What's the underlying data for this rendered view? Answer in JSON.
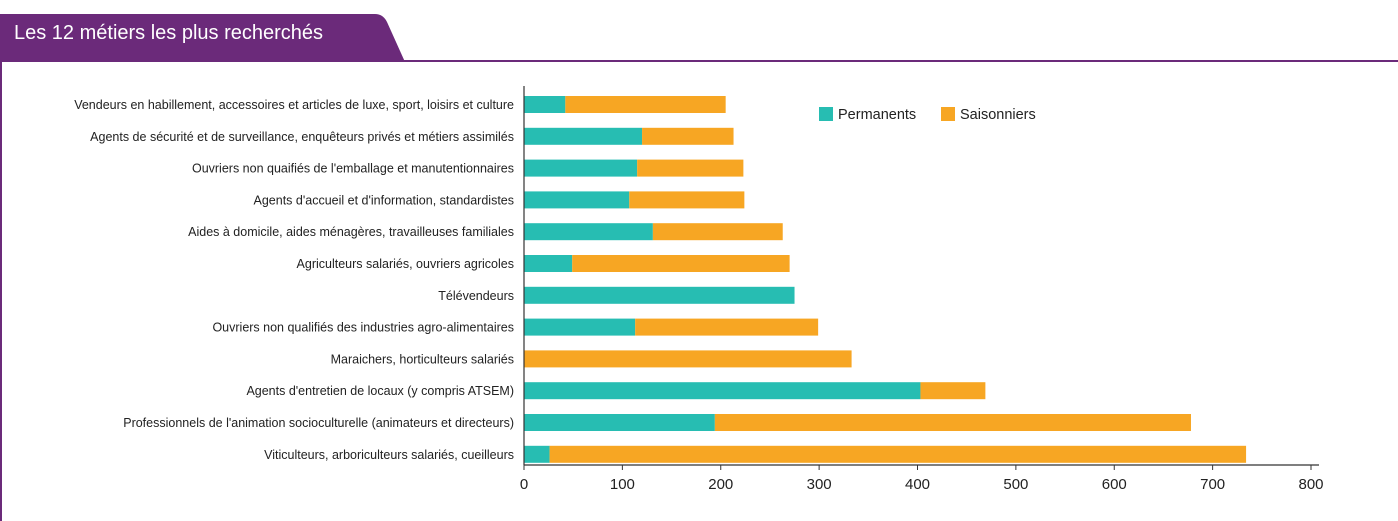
{
  "colors": {
    "frame": "#6b2a7a",
    "permanents": "#27bdb2",
    "saisonniers": "#f7a623",
    "axis": "#333333"
  },
  "chart_data": {
    "type": "bar",
    "orientation": "horizontal",
    "stacked": true,
    "title": "Les 12 métiers les plus recherchés",
    "xlabel": "",
    "ylabel": "",
    "xlim": [
      0,
      800
    ],
    "xticks": [
      0,
      100,
      200,
      300,
      400,
      500,
      600,
      700,
      800
    ],
    "grid": false,
    "legend_position": "top-right",
    "categories": [
      "Vendeurs en habillement, accessoires et articles de luxe, sport, loisirs et culture",
      "Agents de sécurité et de surveillance, enquêteurs privés et métiers assimilés",
      "Ouvriers non quaifiés de l'emballage et manutentionnaires",
      "Agents d'accueil et d'information, standardistes",
      "Aides à domicile, aides ménagères, travailleuses familiales",
      "Agriculteurs salariés, ouvriers agricoles",
      "Télévendeurs",
      "Ouvriers non qualifiés des industries agro-alimentaires",
      "Maraichers, horticulteurs salariés",
      "Agents d'entretien de locaux (y compris ATSEM)",
      "Professionnels de l'animation socioculturelle (animateurs et directeurs)",
      "Viticulteurs, arboriculteurs salariés, cueilleurs"
    ],
    "series": [
      {
        "name": "Permanents",
        "color": "#27bdb2",
        "values": [
          42,
          120,
          115,
          107,
          131,
          49,
          275,
          113,
          0,
          403,
          194,
          26
        ]
      },
      {
        "name": "Saisonniers",
        "color": "#f7a623",
        "values": [
          163,
          93,
          108,
          117,
          132,
          221,
          0,
          186,
          333,
          66,
          484,
          708
        ]
      }
    ]
  }
}
